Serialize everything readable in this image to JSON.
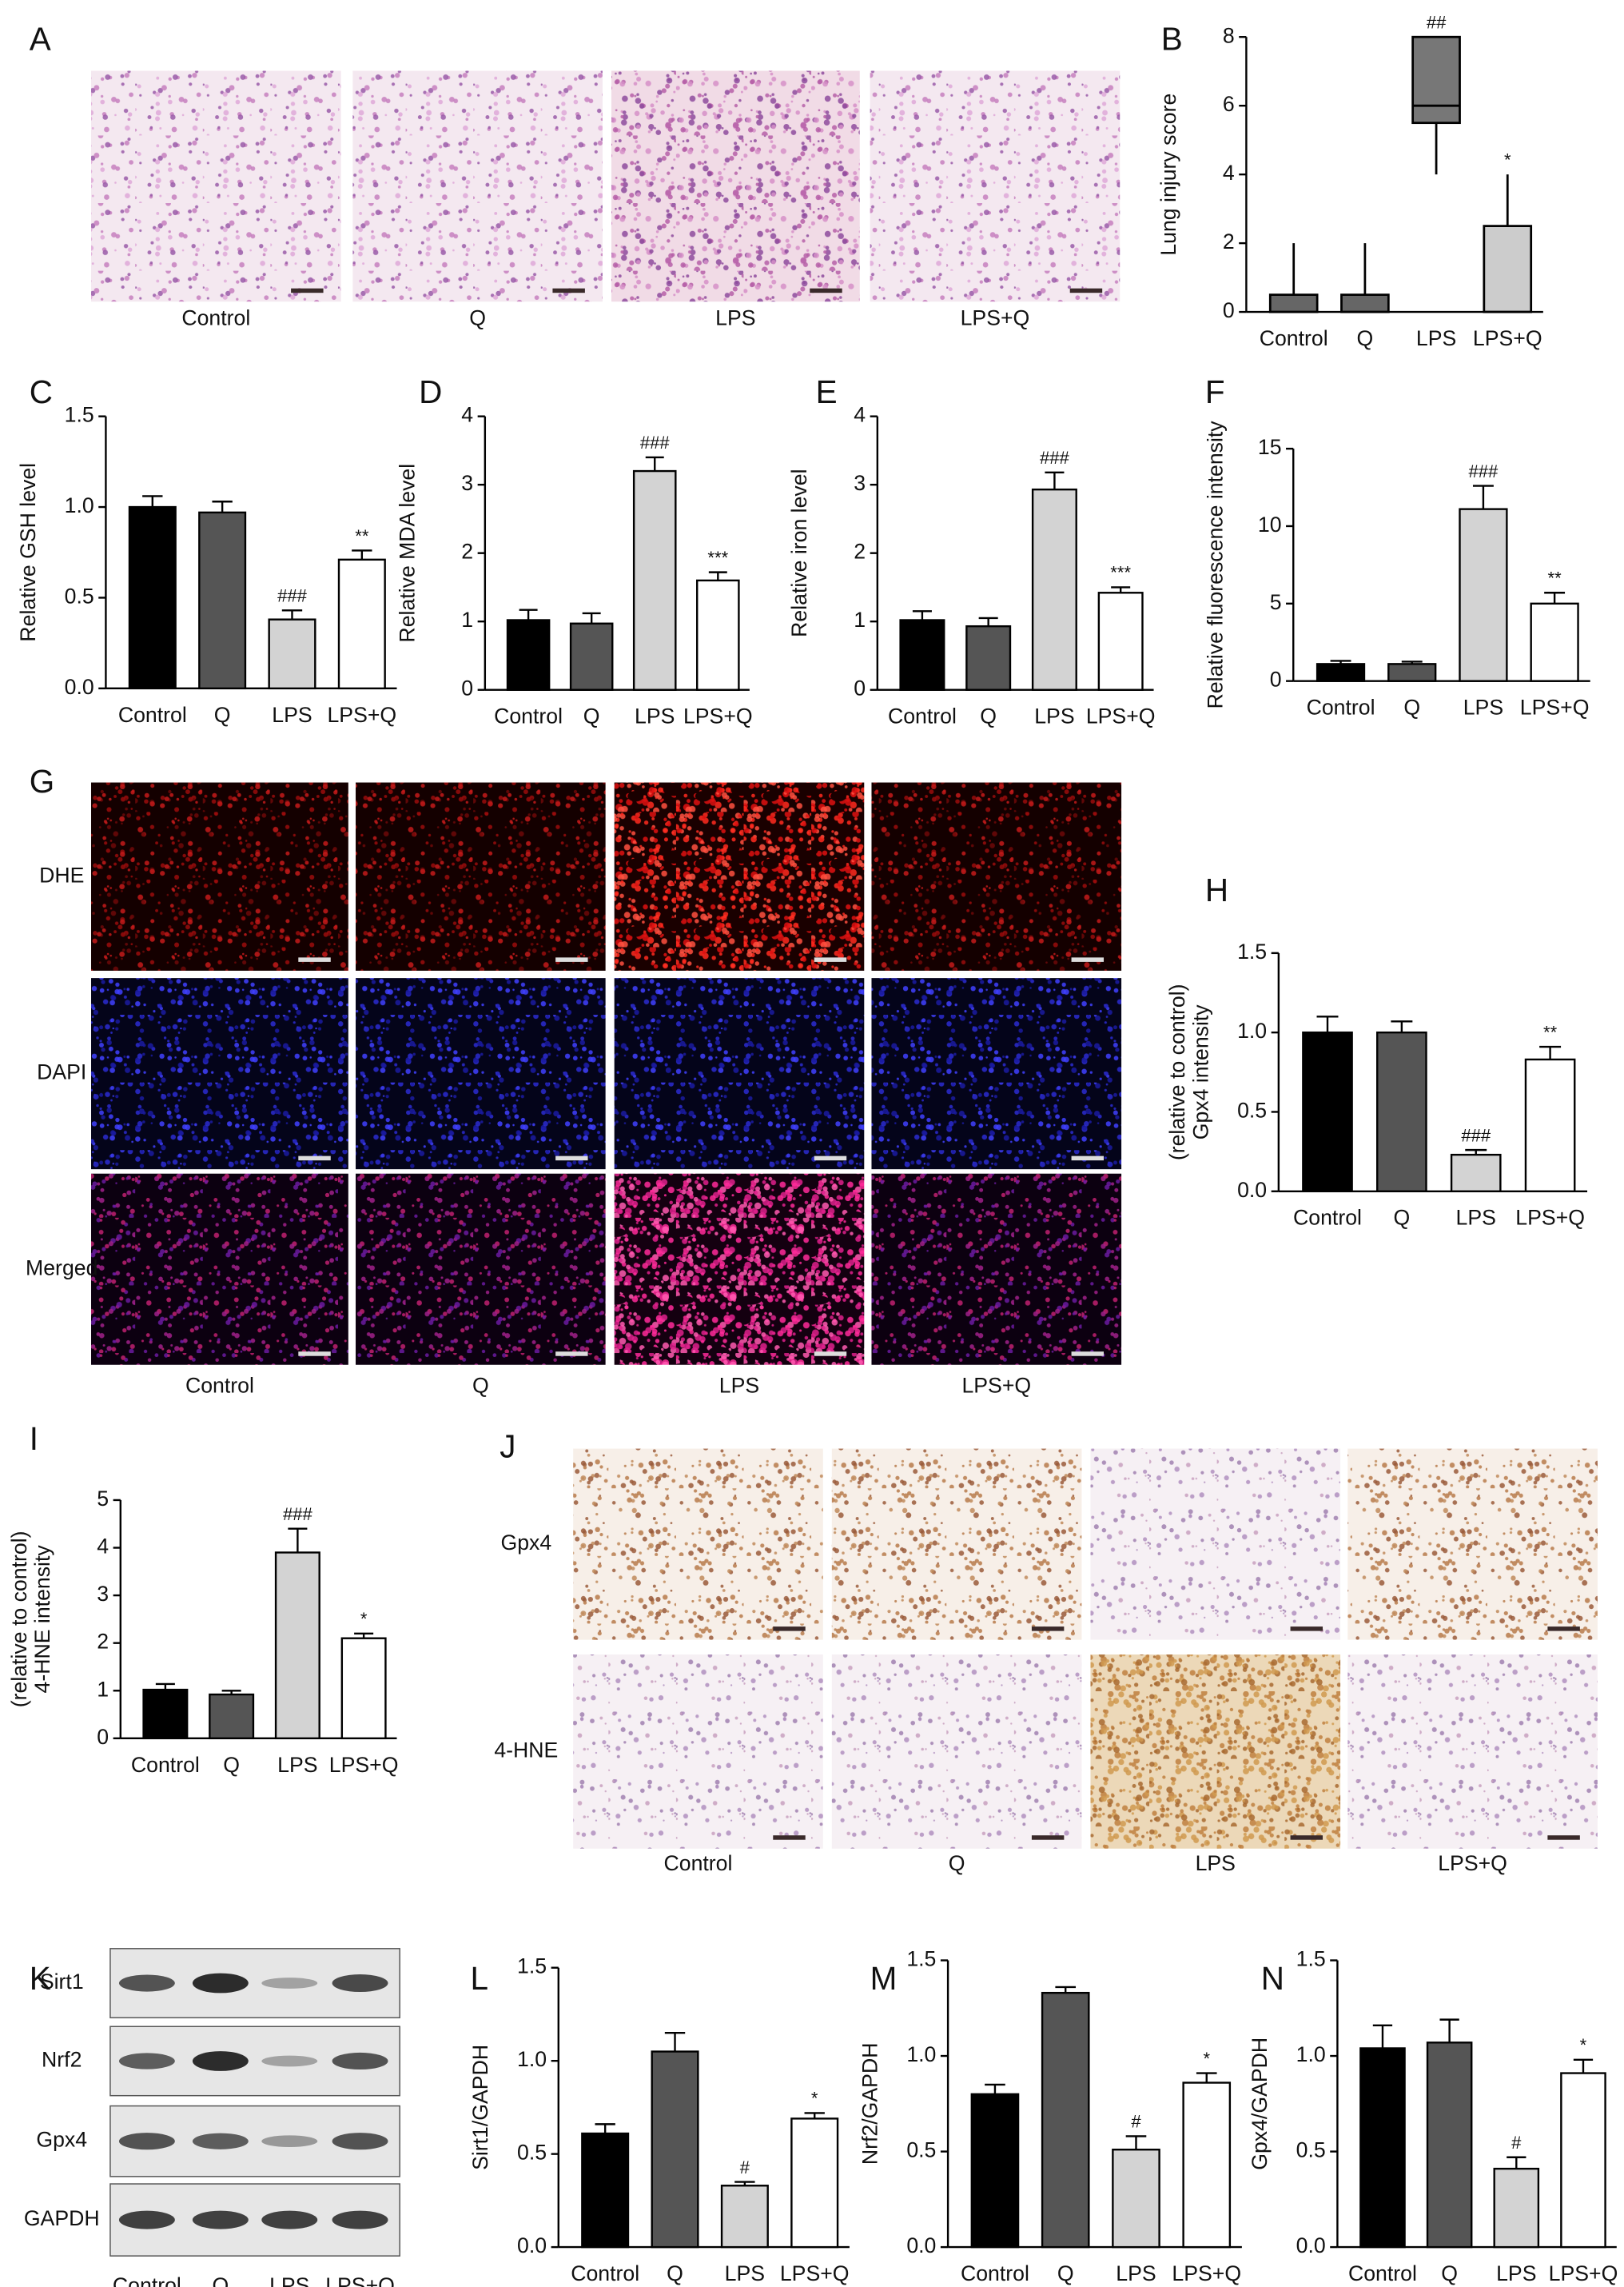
{
  "chart_data": [
    {
      "type": "box",
      "panel_label": "B",
      "ylabel": "Lung injury score",
      "categories": [
        "Control",
        "Q",
        "LPS",
        "LPS+Q"
      ],
      "min": [
        0,
        0,
        4,
        0
      ],
      "q1": [
        0,
        0,
        5.5,
        0
      ],
      "median": [
        0,
        0,
        6,
        0
      ],
      "q3": [
        0.5,
        0.5,
        8,
        2.5
      ],
      "max": [
        2,
        2,
        8,
        4
      ],
      "annotations": [
        null,
        null,
        "##",
        "*"
      ],
      "colors": [
        "#666666",
        "#666666",
        "#777777",
        "#cccccc"
      ],
      "ylim": [
        0,
        8
      ],
      "yticks": [
        0,
        2,
        4,
        6,
        8
      ]
    },
    {
      "type": "bar",
      "panel_label": "C",
      "ylabel": "Relative GSH level",
      "categories": [
        "Control",
        "Q",
        "LPS",
        "LPS+Q"
      ],
      "values": [
        1.0,
        0.97,
        0.38,
        0.71
      ],
      "errors": [
        0.06,
        0.06,
        0.05,
        0.05
      ],
      "annotations": [
        null,
        null,
        "###",
        "**"
      ],
      "colors": [
        "#000000",
        "#555555",
        "#d3d3d3",
        "#ffffff"
      ],
      "ylim": [
        0,
        1.5
      ],
      "yticks": [
        {
          "value": 0,
          "label": "0.0"
        },
        0.5,
        {
          "value": 1,
          "label": "1.0"
        },
        1.5
      ]
    },
    {
      "type": "bar",
      "panel_label": "D",
      "ylabel": "Relative MDA level",
      "categories": [
        "Control",
        "Q",
        "LPS",
        "LPS+Q"
      ],
      "values": [
        1.02,
        0.97,
        3.2,
        1.6
      ],
      "errors": [
        0.15,
        0.15,
        0.2,
        0.12
      ],
      "annotations": [
        null,
        null,
        "###",
        "***"
      ],
      "colors": [
        "#000000",
        "#555555",
        "#d3d3d3",
        "#ffffff"
      ],
      "ylim": [
        0,
        4
      ],
      "yticks": [
        0,
        1,
        2,
        3,
        4
      ]
    },
    {
      "type": "bar",
      "panel_label": "E",
      "ylabel": "Relative iron level",
      "categories": [
        "Control",
        "Q",
        "LPS",
        "LPS+Q"
      ],
      "values": [
        1.02,
        0.93,
        2.93,
        1.42
      ],
      "errors": [
        0.13,
        0.12,
        0.25,
        0.08
      ],
      "annotations": [
        null,
        null,
        "###",
        "***"
      ],
      "colors": [
        "#000000",
        "#555555",
        "#d3d3d3",
        "#ffffff"
      ],
      "ylim": [
        0,
        4
      ],
      "yticks": [
        0,
        1,
        2,
        3,
        4
      ]
    },
    {
      "type": "bar",
      "panel_label": "F",
      "ylabel": "Relative fluorescence intensity",
      "categories": [
        "Control",
        "Q",
        "LPS",
        "LPS+Q"
      ],
      "values": [
        1.1,
        1.1,
        11.1,
        5.0
      ],
      "errors": [
        0.2,
        0.15,
        1.5,
        0.7
      ],
      "annotations": [
        null,
        null,
        "###",
        "**"
      ],
      "colors": [
        "#000000",
        "#555555",
        "#d3d3d3",
        "#ffffff"
      ],
      "ylim": [
        0,
        15
      ],
      "yticks": [
        0,
        5,
        10,
        15
      ]
    },
    {
      "type": "bar",
      "panel_label": "H",
      "ylabel": [
        "Gpx4 intensity",
        "(relative to control)"
      ],
      "categories": [
        "Control",
        "Q",
        "LPS",
        "LPS+Q"
      ],
      "values": [
        1.0,
        1.0,
        0.23,
        0.83
      ],
      "errors": [
        0.1,
        0.07,
        0.03,
        0.08
      ],
      "annotations": [
        null,
        null,
        "###",
        "**"
      ],
      "colors": [
        "#000000",
        "#555555",
        "#d3d3d3",
        "#ffffff"
      ],
      "ylim": [
        0,
        1.5
      ],
      "yticks": [
        {
          "value": 0,
          "label": "0.0"
        },
        0.5,
        {
          "value": 1,
          "label": "1.0"
        },
        1.5
      ]
    },
    {
      "type": "bar",
      "panel_label": "I",
      "ylabel": [
        "4-HNE intensity",
        "(relative to control)"
      ],
      "categories": [
        "Control",
        "Q",
        "LPS",
        "LPS+Q"
      ],
      "values": [
        1.02,
        0.92,
        3.9,
        2.1
      ],
      "errors": [
        0.12,
        0.08,
        0.5,
        0.1
      ],
      "annotations": [
        null,
        null,
        "###",
        "*"
      ],
      "colors": [
        "#000000",
        "#555555",
        "#d3d3d3",
        "#ffffff"
      ],
      "ylim": [
        0,
        5
      ],
      "yticks": [
        0,
        1,
        2,
        3,
        4,
        5
      ]
    },
    {
      "type": "bar",
      "panel_label": "L",
      "ylabel": "Sirt1/GAPDH",
      "categories": [
        "Control",
        "Q",
        "LPS",
        "LPS+Q"
      ],
      "values": [
        0.61,
        1.05,
        0.33,
        0.69
      ],
      "errors": [
        0.05,
        0.1,
        0.02,
        0.03
      ],
      "annotations": [
        null,
        null,
        "#",
        "*"
      ],
      "colors": [
        "#000000",
        "#555555",
        "#d3d3d3",
        "#ffffff"
      ],
      "ylim": [
        0,
        1.5
      ],
      "yticks": [
        {
          "value": 0,
          "label": "0.0"
        },
        0.5,
        {
          "value": 1,
          "label": "1.0"
        },
        1.5
      ]
    },
    {
      "type": "bar",
      "panel_label": "M",
      "ylabel": "Nrf2/GAPDH",
      "categories": [
        "Control",
        "Q",
        "LPS",
        "LPS+Q"
      ],
      "values": [
        0.8,
        1.33,
        0.51,
        0.86
      ],
      "errors": [
        0.05,
        0.03,
        0.07,
        0.05
      ],
      "annotations": [
        null,
        null,
        "#",
        "*"
      ],
      "colors": [
        "#000000",
        "#555555",
        "#d3d3d3",
        "#ffffff"
      ],
      "ylim": [
        0,
        1.5
      ],
      "yticks": [
        {
          "value": 0,
          "label": "0.0"
        },
        0.5,
        {
          "value": 1,
          "label": "1.0"
        },
        1.5
      ]
    },
    {
      "type": "bar",
      "panel_label": "N",
      "ylabel": "Gpx4/GAPDH",
      "categories": [
        "Control",
        "Q",
        "LPS",
        "LPS+Q"
      ],
      "values": [
        1.04,
        1.07,
        0.41,
        0.91
      ],
      "errors": [
        0.12,
        0.12,
        0.06,
        0.07
      ],
      "annotations": [
        null,
        null,
        "#",
        "*"
      ],
      "colors": [
        "#000000",
        "#555555",
        "#d3d3d3",
        "#ffffff"
      ],
      "ylim": [
        0,
        1.5
      ],
      "yticks": [
        {
          "value": 0,
          "label": "0.0"
        },
        0.5,
        {
          "value": 1,
          "label": "1.0"
        },
        1.5
      ]
    }
  ],
  "image_panels": [
    {
      "panel_label": "A",
      "columns": [
        "Control",
        "Q",
        "LPS",
        "LPS+Q"
      ]
    },
    {
      "panel_label": "G",
      "rows": [
        "DHE",
        "DAPI",
        "Merged"
      ],
      "columns": [
        "Control",
        "Q",
        "LPS",
        "LPS+Q"
      ]
    },
    {
      "panel_label": "J",
      "rows": [
        "Gpx4",
        "4-HNE"
      ],
      "columns": [
        "Control",
        "Q",
        "LPS",
        "LPS+Q"
      ]
    },
    {
      "panel_label": "K",
      "rows": [
        "Sirt1",
        "Nrf2",
        "Gpx4",
        "GAPDH"
      ],
      "columns": [
        "Control",
        "Q",
        "LPS",
        "LPS+Q"
      ]
    }
  ]
}
